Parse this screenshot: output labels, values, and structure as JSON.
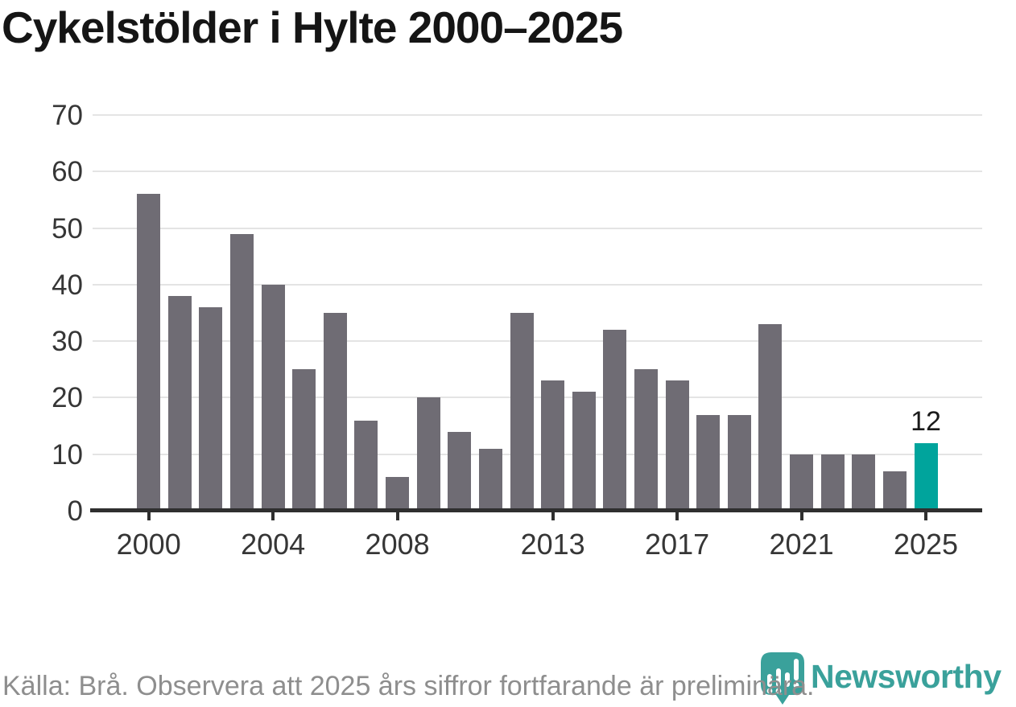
{
  "title": "Cykelstölder i Hylte 2000–2025",
  "footer": {
    "source_text": "Källa: Brå. Observera att 2025 års siffror fortfarande är preliminära."
  },
  "logo": {
    "brand": "Newsworthy",
    "icon": "newsworthy-bubble-barchart-icon"
  },
  "colors": {
    "background": "#ffffff",
    "bar_default": "#6f6c74",
    "bar_highlight": "#00a49c",
    "axis_line": "#2f2f2f",
    "gridline": "#e4e4e4",
    "title_text": "#151515",
    "tick_text": "#363636",
    "value_label_text": "#1a1a1a",
    "footer_text": "#8e8e8e",
    "brand_teal": "#3aa19b"
  },
  "chart_data": {
    "type": "bar",
    "title": "Cykelstölder i Hylte 2000–2025",
    "xlabel": "",
    "ylabel": "",
    "x": [
      2000,
      2001,
      2002,
      2003,
      2004,
      2005,
      2006,
      2007,
      2008,
      2009,
      2010,
      2011,
      2012,
      2013,
      2014,
      2015,
      2016,
      2017,
      2018,
      2019,
      2020,
      2021,
      2022,
      2023,
      2024,
      2025
    ],
    "values": [
      56,
      38,
      36,
      49,
      40,
      25,
      35,
      16,
      6,
      20,
      14,
      11,
      35,
      23,
      21,
      32,
      25,
      23,
      17,
      17,
      33,
      10,
      10,
      10,
      7,
      12
    ],
    "highlighted_year": 2025,
    "highlight_value_label": "12",
    "ylim": [
      0,
      70
    ],
    "yticks": [
      0,
      10,
      20,
      30,
      40,
      50,
      60,
      70
    ],
    "xticks": [
      2000,
      2004,
      2008,
      2013,
      2017,
      2021,
      2025
    ],
    "grid": true,
    "legend": false
  }
}
